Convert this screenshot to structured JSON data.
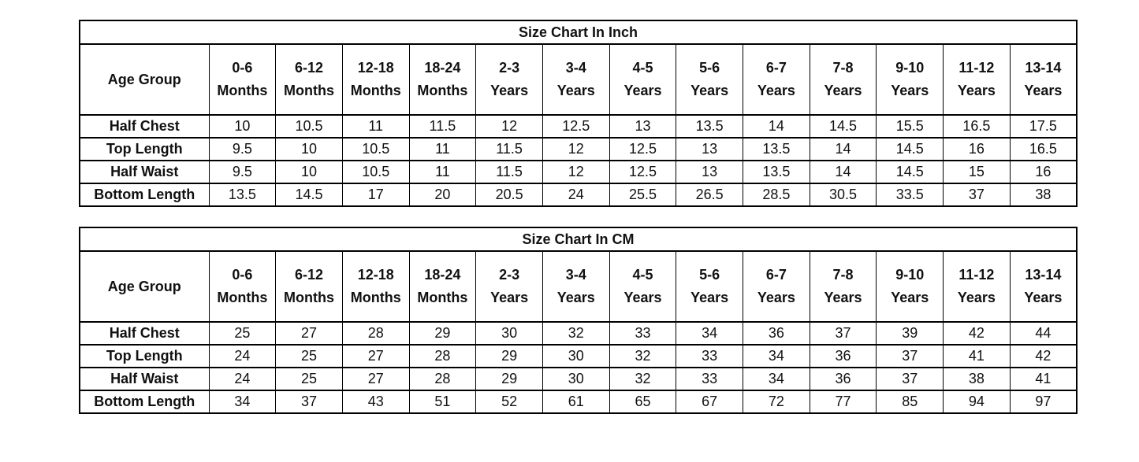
{
  "colors": {
    "background": "#ffffff",
    "border": "#000000",
    "text": "#111111"
  },
  "chart_data": [
    {
      "type": "table",
      "unit": "inch",
      "title": "Size Chart In Inch",
      "corner_label": "Age Group",
      "age_groups": [
        {
          "range": "0-6",
          "unit": "Months"
        },
        {
          "range": "6-12",
          "unit": "Months"
        },
        {
          "range": "12-18",
          "unit": "Months"
        },
        {
          "range": "18-24",
          "unit": "Months"
        },
        {
          "range": "2-3",
          "unit": "Years"
        },
        {
          "range": "3-4",
          "unit": "Years"
        },
        {
          "range": "4-5",
          "unit": "Years"
        },
        {
          "range": "5-6",
          "unit": "Years"
        },
        {
          "range": "6-7",
          "unit": "Years"
        },
        {
          "range": "7-8",
          "unit": "Years"
        },
        {
          "range": "9-10",
          "unit": "Years"
        },
        {
          "range": "11-12",
          "unit": "Years"
        },
        {
          "range": "13-14",
          "unit": "Years"
        }
      ],
      "rows": [
        {
          "label": "Half Chest",
          "values": [
            10,
            10.5,
            11,
            11.5,
            12,
            12.5,
            13,
            13.5,
            14,
            14.5,
            15.5,
            16.5,
            17.5
          ]
        },
        {
          "label": "Top Length",
          "values": [
            9.5,
            10,
            10.5,
            11,
            11.5,
            12,
            12.5,
            13,
            13.5,
            14,
            14.5,
            16,
            16.5
          ]
        },
        {
          "label": "Half Waist",
          "values": [
            9.5,
            10,
            10.5,
            11,
            11.5,
            12,
            12.5,
            13,
            13.5,
            14,
            14.5,
            15,
            16
          ]
        },
        {
          "label": "Bottom Length",
          "values": [
            13.5,
            14.5,
            17,
            20,
            20.5,
            24,
            25.5,
            26.5,
            28.5,
            30.5,
            33.5,
            37,
            38
          ]
        }
      ]
    },
    {
      "type": "table",
      "unit": "cm",
      "title": "Size Chart In CM",
      "corner_label": "Age Group",
      "age_groups": [
        {
          "range": "0-6",
          "unit": "Months"
        },
        {
          "range": "6-12",
          "unit": "Months"
        },
        {
          "range": "12-18",
          "unit": "Months"
        },
        {
          "range": "18-24",
          "unit": "Months"
        },
        {
          "range": "2-3",
          "unit": "Years"
        },
        {
          "range": "3-4",
          "unit": "Years"
        },
        {
          "range": "4-5",
          "unit": "Years"
        },
        {
          "range": "5-6",
          "unit": "Years"
        },
        {
          "range": "6-7",
          "unit": "Years"
        },
        {
          "range": "7-8",
          "unit": "Years"
        },
        {
          "range": "9-10",
          "unit": "Years"
        },
        {
          "range": "11-12",
          "unit": "Years"
        },
        {
          "range": "13-14",
          "unit": "Years"
        }
      ],
      "rows": [
        {
          "label": "Half Chest",
          "values": [
            25,
            27,
            28,
            29,
            30,
            32,
            33,
            34,
            36,
            37,
            39,
            42,
            44
          ]
        },
        {
          "label": "Top Length",
          "values": [
            24,
            25,
            27,
            28,
            29,
            30,
            32,
            33,
            34,
            36,
            37,
            41,
            42
          ]
        },
        {
          "label": "Half Waist",
          "values": [
            24,
            25,
            27,
            28,
            29,
            30,
            32,
            33,
            34,
            36,
            37,
            38,
            41
          ]
        },
        {
          "label": "Bottom Length",
          "values": [
            34,
            37,
            43,
            51,
            52,
            61,
            65,
            67,
            72,
            77,
            85,
            94,
            97
          ]
        }
      ]
    }
  ]
}
